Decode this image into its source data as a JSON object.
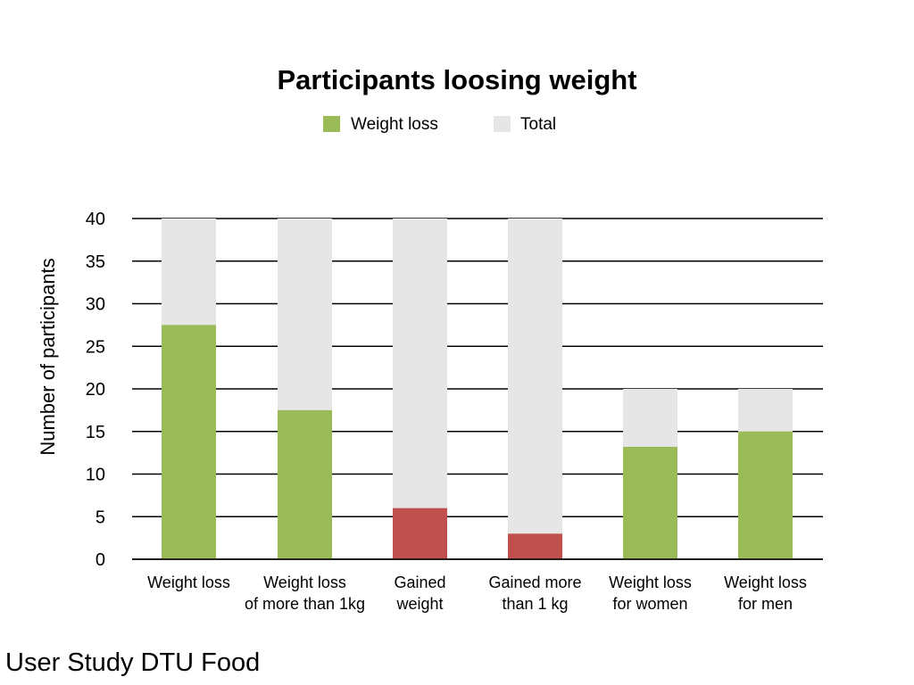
{
  "chart_data": {
    "type": "bar",
    "stacked": "overlay",
    "title": "Participants loosing weight",
    "xlabel": "",
    "ylabel": "Number of participants",
    "ylim": [
      0,
      40
    ],
    "yticks": [
      "0",
      "5",
      "10",
      "15",
      "20",
      "25",
      "30",
      "35",
      "40"
    ],
    "grid": true,
    "legend_position": "top-center",
    "categories": [
      [
        "Weight loss"
      ],
      [
        "Weight loss",
        "of more than 1kg"
      ],
      [
        "Gained",
        "weight"
      ],
      [
        "Gained more",
        "than 1 kg"
      ],
      [
        "Weight loss",
        "for women"
      ],
      [
        "Weight loss",
        "for men"
      ]
    ],
    "series": [
      {
        "name": "Weight loss",
        "color": "#9bbb59",
        "values": [
          27.5,
          17.5,
          6,
          3,
          13.2,
          15
        ]
      },
      {
        "name": "Total",
        "color": "#e6e6e6",
        "values": [
          40,
          40,
          40,
          40,
          20,
          20
        ]
      }
    ],
    "highlight_color": "#c0504d",
    "highlight_categories": [
      2,
      3
    ]
  },
  "footer": {
    "text": "User Study DTU Food"
  }
}
